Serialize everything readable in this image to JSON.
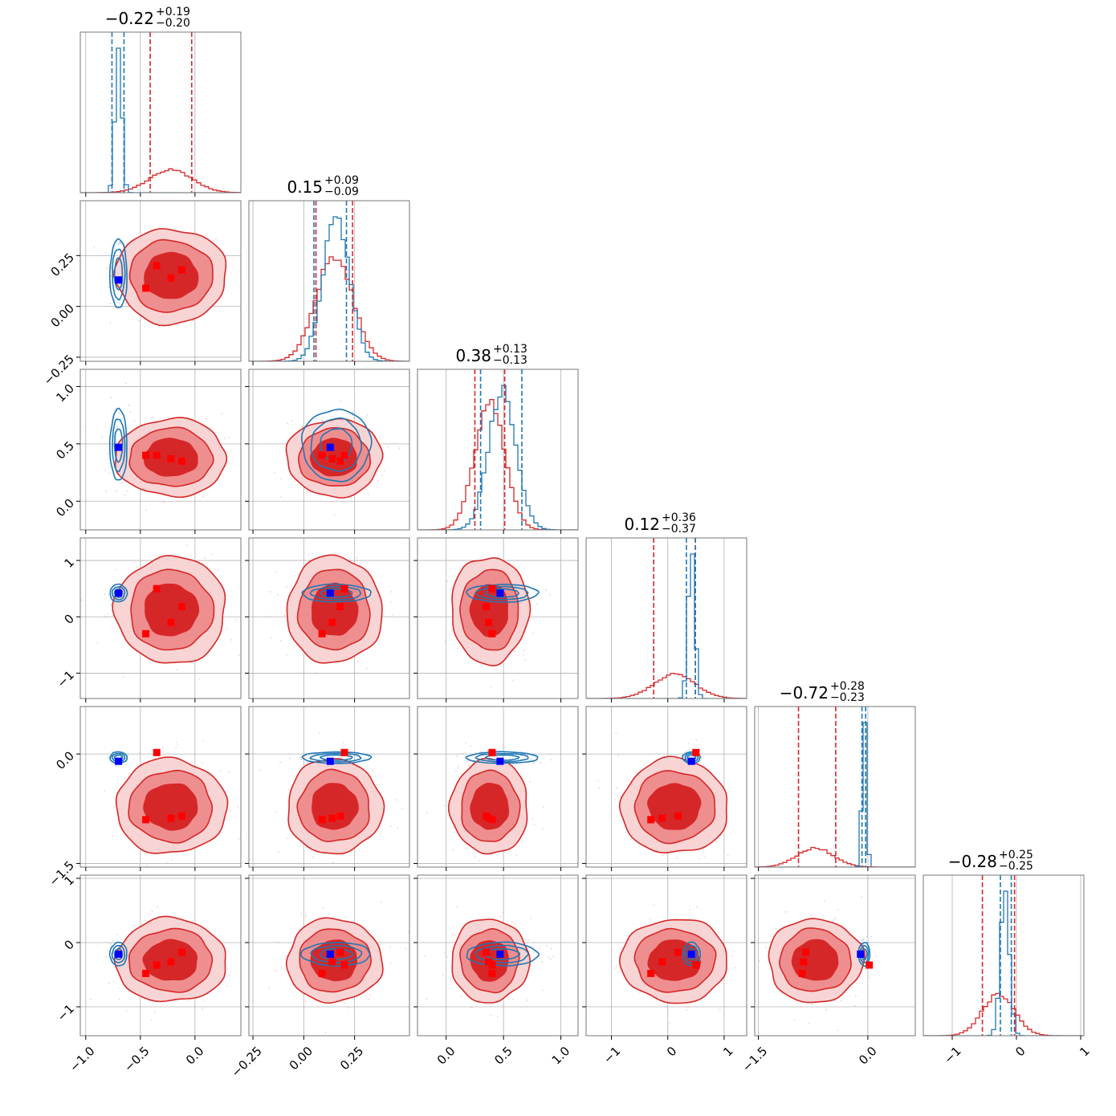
{
  "chart_data": {
    "type": "corner",
    "n_params": 6,
    "grid": true,
    "colors": {
      "red": "#d62728",
      "red_mid": "#ee8a8b",
      "red_light": "#f8d2d2",
      "blue": "#1f77b4",
      "point_blue": "#0000ff",
      "point_red": "#ff0000",
      "grid": "#b0b0b0"
    },
    "ranges": [
      [
        -1.05,
        0.42
      ],
      [
        -0.27,
        0.52
      ],
      [
        -0.25,
        1.15
      ],
      [
        -1.45,
        1.4
      ],
      [
        -1.55,
        0.65
      ],
      [
        -1.45,
        1.05
      ]
    ],
    "ticks": [
      [
        -1.0,
        -0.5,
        0.0
      ],
      [
        -0.25,
        0.0,
        0.25
      ],
      [
        0.0,
        0.5,
        1.0
      ],
      [
        -1,
        0,
        1
      ],
      [
        -1.5,
        0.0
      ],
      [
        -1,
        0,
        1
      ]
    ],
    "tick_labels": [
      [
        "−1.0",
        "−0.5",
        "0.0"
      ],
      [
        "−0.25",
        "0.00",
        "0.25"
      ],
      [
        "0.0",
        "0.5",
        "1.0"
      ],
      [
        "−1",
        "0",
        "1"
      ],
      [
        "−1.5",
        "0.0"
      ],
      [
        "−1",
        "0",
        "1"
      ]
    ],
    "titles": [
      {
        "value": "−0.22",
        "plus": "+0.19",
        "minus": "−0.20"
      },
      {
        "value": "0.15",
        "plus": "+0.09",
        "minus": "−0.09"
      },
      {
        "value": "0.38",
        "plus": "+0.13",
        "minus": "−0.13"
      },
      {
        "value": "0.12",
        "plus": "+0.36",
        "minus": "−0.37"
      },
      {
        "value": "−0.72",
        "plus": "+0.28",
        "minus": "−0.23"
      },
      {
        "value": "−0.28",
        "plus": "+0.25",
        "minus": "−0.25"
      }
    ],
    "red": {
      "median": [
        -0.22,
        0.15,
        0.38,
        0.12,
        -0.72,
        -0.28
      ],
      "sigma": [
        0.195,
        0.09,
        0.13,
        0.365,
        0.25,
        0.25
      ],
      "quantiles": [
        [
          -0.41,
          -0.03
        ],
        [
          0.06,
          0.24
        ],
        [
          0.25,
          0.51
        ],
        [
          -0.25,
          0.49
        ],
        [
          -0.95,
          -0.44
        ],
        [
          -0.53,
          -0.03
        ]
      ],
      "contour_scale": [
        1.0,
        1.0,
        1.0,
        1.0,
        1.0,
        1.0
      ]
    },
    "blue": {
      "median": [
        -0.7,
        0.16,
        0.49,
        0.42,
        -0.05,
        -0.18
      ],
      "sigma": [
        0.03,
        0.065,
        0.12,
        0.06,
        0.03,
        0.07
      ],
      "quantiles": [
        [
          -0.76,
          -0.65
        ],
        [
          0.05,
          0.21
        ],
        [
          0.3,
          0.66
        ],
        [
          0.33,
          0.49
        ],
        [
          -0.08,
          -0.03
        ],
        [
          -0.25,
          -0.08
        ]
      ],
      "contour_scale": [
        1.0,
        1.0,
        1.0,
        1.0,
        1.0,
        1.0
      ]
    },
    "markers": {
      "blue": [
        -0.7,
        0.13,
        0.47,
        0.42,
        -0.1,
        -0.18
      ],
      "red": [
        [
          -0.35,
          0.2,
          0.4,
          0.5,
          0.02,
          -0.35
        ],
        [
          -0.12,
          0.18,
          0.35,
          0.18,
          -0.85,
          -0.15
        ],
        [
          -0.22,
          0.14,
          0.37,
          -0.1,
          -0.88,
          -0.3
        ],
        [
          -0.45,
          0.09,
          0.4,
          -0.3,
          -0.9,
          -0.48
        ]
      ]
    }
  }
}
